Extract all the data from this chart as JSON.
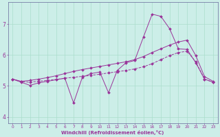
{
  "xlabel": "Windchill (Refroidissement éolien,°C)",
  "bg_color": "#cceee8",
  "grid_color": "#aaddcc",
  "line_color": "#993399",
  "spine_color": "#666699",
  "xlim": [
    -0.5,
    23.5
  ],
  "ylim": [
    3.8,
    7.7
  ],
  "xticks": [
    0,
    1,
    2,
    3,
    4,
    5,
    6,
    7,
    8,
    9,
    10,
    11,
    12,
    13,
    14,
    15,
    16,
    17,
    18,
    19,
    20,
    21,
    22,
    23
  ],
  "yticks": [
    4,
    5,
    6,
    7
  ],
  "series1_x": [
    0,
    1,
    2,
    3,
    4,
    5,
    6,
    7,
    8,
    9,
    10,
    11,
    12,
    13,
    14,
    15,
    16,
    17,
    18,
    19,
    20,
    21,
    22,
    23
  ],
  "series1_y": [
    5.22,
    5.12,
    5.02,
    5.1,
    5.15,
    5.2,
    5.25,
    4.45,
    5.28,
    5.4,
    5.45,
    4.78,
    5.5,
    5.75,
    5.82,
    6.58,
    7.32,
    7.25,
    6.85,
    6.2,
    6.18,
    5.75,
    5.22,
    5.12
  ],
  "series2_x": [
    0,
    1,
    2,
    3,
    4,
    5,
    6,
    7,
    8,
    9,
    10,
    11,
    12,
    13,
    14,
    15,
    16,
    17,
    18,
    19,
    20,
    21,
    22,
    23
  ],
  "series2_y": [
    5.22,
    5.14,
    5.12,
    5.15,
    5.18,
    5.21,
    5.25,
    5.28,
    5.31,
    5.34,
    5.38,
    5.42,
    5.46,
    5.5,
    5.55,
    5.62,
    5.72,
    5.85,
    5.98,
    6.08,
    6.12,
    5.78,
    5.22,
    5.12
  ],
  "series3_x": [
    0,
    1,
    2,
    3,
    4,
    5,
    6,
    7,
    8,
    9,
    10,
    11,
    12,
    13,
    14,
    15,
    16,
    17,
    18,
    19,
    20,
    21,
    22,
    23
  ],
  "series3_y": [
    5.22,
    5.15,
    5.18,
    5.22,
    5.27,
    5.33,
    5.4,
    5.47,
    5.53,
    5.58,
    5.63,
    5.68,
    5.73,
    5.78,
    5.85,
    5.95,
    6.08,
    6.2,
    6.32,
    6.42,
    6.48,
    5.98,
    5.3,
    5.15
  ]
}
